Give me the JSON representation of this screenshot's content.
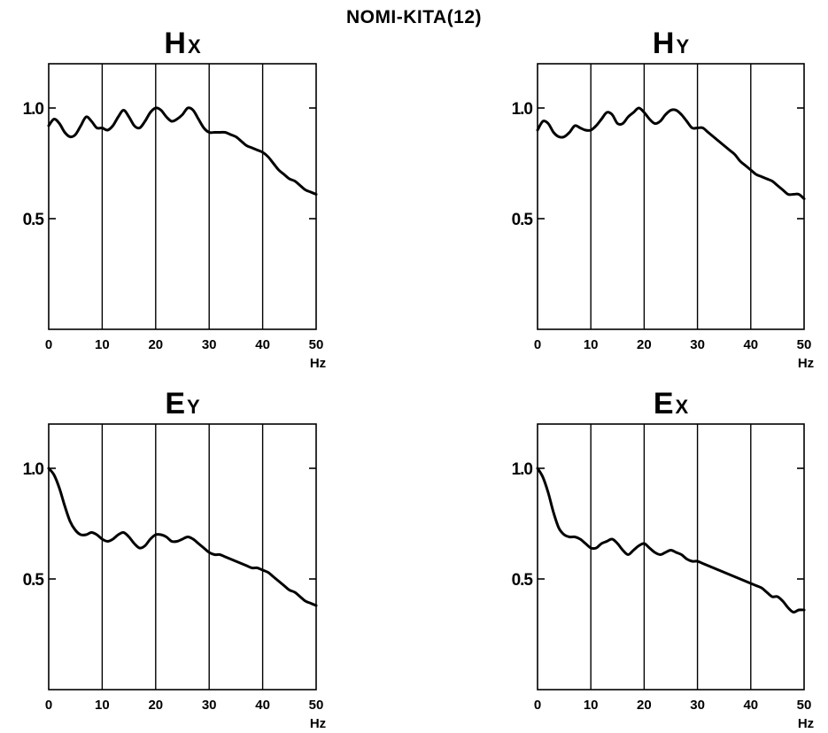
{
  "title": "NOMI-KITA(12)",
  "chart_data": [
    {
      "type": "line",
      "title_main": "H",
      "title_sub": "X",
      "xlabel": "Hz",
      "xlim": [
        0,
        50
      ],
      "ylim": [
        0,
        1.2
      ],
      "xticks": [
        0,
        10,
        20,
        30,
        40,
        50
      ],
      "xtick_labels": [
        "0",
        "10",
        "20",
        "30",
        "40",
        "50"
      ],
      "yticks": [
        0.5,
        1.0
      ],
      "ytick_labels": [
        "0.5",
        "1.0"
      ],
      "grid_x": [
        10,
        20,
        30,
        40
      ],
      "series": [
        {
          "x": [
            0,
            1,
            2,
            3,
            4,
            5,
            6,
            7,
            8,
            9,
            10,
            11,
            12,
            13,
            14,
            15,
            16,
            17,
            18,
            19,
            20,
            21,
            22,
            23,
            24,
            25,
            26,
            27,
            28,
            29,
            30,
            31,
            32,
            33,
            34,
            35,
            36,
            37,
            38,
            39,
            40,
            41,
            42,
            43,
            44,
            45,
            46,
            47,
            48,
            49,
            50
          ],
          "y": [
            0.92,
            0.95,
            0.93,
            0.89,
            0.87,
            0.88,
            0.92,
            0.96,
            0.94,
            0.91,
            0.91,
            0.9,
            0.92,
            0.96,
            0.99,
            0.96,
            0.92,
            0.91,
            0.94,
            0.98,
            1.0,
            0.99,
            0.96,
            0.94,
            0.95,
            0.97,
            1.0,
            0.99,
            0.95,
            0.91,
            0.89,
            0.89,
            0.89,
            0.89,
            0.88,
            0.87,
            0.85,
            0.83,
            0.82,
            0.81,
            0.8,
            0.78,
            0.75,
            0.72,
            0.7,
            0.68,
            0.67,
            0.65,
            0.63,
            0.62,
            0.61
          ]
        }
      ]
    },
    {
      "type": "line",
      "title_main": "H",
      "title_sub": "Y",
      "xlabel": "Hz",
      "xlim": [
        0,
        50
      ],
      "ylim": [
        0,
        1.2
      ],
      "xticks": [
        0,
        10,
        20,
        30,
        40,
        50
      ],
      "xtick_labels": [
        "0",
        "10",
        "20",
        "30",
        "40",
        "50"
      ],
      "yticks": [
        0.5,
        1.0
      ],
      "ytick_labels": [
        "0.5",
        "1.0"
      ],
      "grid_x": [
        10,
        20,
        30,
        40
      ],
      "series": [
        {
          "x": [
            0,
            1,
            2,
            3,
            4,
            5,
            6,
            7,
            8,
            9,
            10,
            11,
            12,
            13,
            14,
            15,
            16,
            17,
            18,
            19,
            20,
            21,
            22,
            23,
            24,
            25,
            26,
            27,
            28,
            29,
            30,
            31,
            32,
            33,
            34,
            35,
            36,
            37,
            38,
            39,
            40,
            41,
            42,
            43,
            44,
            45,
            46,
            47,
            48,
            49,
            50
          ],
          "y": [
            0.9,
            0.94,
            0.93,
            0.89,
            0.87,
            0.87,
            0.89,
            0.92,
            0.91,
            0.9,
            0.9,
            0.92,
            0.95,
            0.98,
            0.97,
            0.93,
            0.93,
            0.96,
            0.98,
            1.0,
            0.98,
            0.95,
            0.93,
            0.94,
            0.97,
            0.99,
            0.99,
            0.97,
            0.94,
            0.91,
            0.91,
            0.91,
            0.89,
            0.87,
            0.85,
            0.83,
            0.81,
            0.79,
            0.76,
            0.74,
            0.72,
            0.7,
            0.69,
            0.68,
            0.67,
            0.65,
            0.63,
            0.61,
            0.61,
            0.61,
            0.59
          ]
        }
      ]
    },
    {
      "type": "line",
      "title_main": "E",
      "title_sub": "Y",
      "xlabel": "Hz",
      "xlim": [
        0,
        50
      ],
      "ylim": [
        0,
        1.2
      ],
      "xticks": [
        0,
        10,
        20,
        30,
        40,
        50
      ],
      "xtick_labels": [
        "0",
        "10",
        "20",
        "30",
        "40",
        "50"
      ],
      "yticks": [
        0.5,
        1.0
      ],
      "ytick_labels": [
        "0.5",
        "1.0"
      ],
      "grid_x": [
        10,
        20,
        30,
        40
      ],
      "series": [
        {
          "x": [
            0,
            1,
            2,
            3,
            4,
            5,
            6,
            7,
            8,
            9,
            10,
            11,
            12,
            13,
            14,
            15,
            16,
            17,
            18,
            19,
            20,
            21,
            22,
            23,
            24,
            25,
            26,
            27,
            28,
            29,
            30,
            31,
            32,
            33,
            34,
            35,
            36,
            37,
            38,
            39,
            40,
            41,
            42,
            43,
            44,
            45,
            46,
            47,
            48,
            49,
            50
          ],
          "y": [
            1.0,
            0.97,
            0.91,
            0.83,
            0.76,
            0.72,
            0.7,
            0.7,
            0.71,
            0.7,
            0.68,
            0.67,
            0.68,
            0.7,
            0.71,
            0.69,
            0.66,
            0.64,
            0.65,
            0.68,
            0.7,
            0.7,
            0.69,
            0.67,
            0.67,
            0.68,
            0.69,
            0.68,
            0.66,
            0.64,
            0.62,
            0.61,
            0.61,
            0.6,
            0.59,
            0.58,
            0.57,
            0.56,
            0.55,
            0.55,
            0.54,
            0.53,
            0.51,
            0.49,
            0.47,
            0.45,
            0.44,
            0.42,
            0.4,
            0.39,
            0.38
          ]
        }
      ]
    },
    {
      "type": "line",
      "title_main": "E",
      "title_sub": "X",
      "xlabel": "Hz",
      "xlim": [
        0,
        50
      ],
      "ylim": [
        0,
        1.2
      ],
      "xticks": [
        0,
        10,
        20,
        30,
        40,
        50
      ],
      "xtick_labels": [
        "0",
        "10",
        "20",
        "30",
        "40",
        "50"
      ],
      "yticks": [
        0.5,
        1.0
      ],
      "ytick_labels": [
        "0.5",
        "1.0"
      ],
      "grid_x": [
        10,
        20,
        30,
        40
      ],
      "series": [
        {
          "x": [
            0,
            1,
            2,
            3,
            4,
            5,
            6,
            7,
            8,
            9,
            10,
            11,
            12,
            13,
            14,
            15,
            16,
            17,
            18,
            19,
            20,
            21,
            22,
            23,
            24,
            25,
            26,
            27,
            28,
            29,
            30,
            31,
            32,
            33,
            34,
            35,
            36,
            37,
            38,
            39,
            40,
            41,
            42,
            43,
            44,
            45,
            46,
            47,
            48,
            49,
            50
          ],
          "y": [
            1.0,
            0.96,
            0.89,
            0.8,
            0.73,
            0.7,
            0.69,
            0.69,
            0.68,
            0.66,
            0.64,
            0.64,
            0.66,
            0.67,
            0.68,
            0.66,
            0.63,
            0.61,
            0.63,
            0.65,
            0.66,
            0.64,
            0.62,
            0.61,
            0.62,
            0.63,
            0.62,
            0.61,
            0.59,
            0.58,
            0.58,
            0.57,
            0.56,
            0.55,
            0.54,
            0.53,
            0.52,
            0.51,
            0.5,
            0.49,
            0.48,
            0.47,
            0.46,
            0.44,
            0.42,
            0.42,
            0.4,
            0.37,
            0.35,
            0.36,
            0.36
          ]
        }
      ]
    }
  ]
}
